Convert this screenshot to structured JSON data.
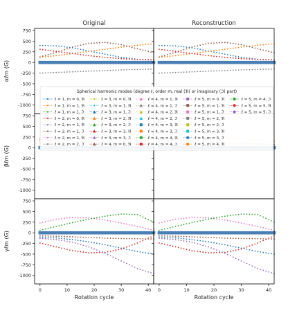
{
  "chart_data": {
    "type": "scatter",
    "column_titles": [
      "Original",
      "Reconstruction"
    ],
    "xlabel": "Rotation cycle",
    "xlim": [
      -2,
      42
    ],
    "xticks": [
      0,
      10,
      20,
      30,
      40
    ],
    "ylim": [
      -1200,
      800
    ],
    "yticks": [
      750,
      500,
      250,
      0,
      -250,
      -500,
      -750,
      -1000
    ],
    "rows": [
      {
        "ylabel": "αℓm (G)"
      },
      {
        "ylabel": "βℓm (G)"
      },
      {
        "ylabel": "γℓm (G)"
      }
    ],
    "legend": {
      "title": "Spherical harmonic modes (degree ℓ, order m, real (ℜ) or imaginary (ℑ) part)",
      "placement": "center (spanning top-row panels)",
      "entries": [
        {
          "label": "ℓ = 1, m = 0, ℜ",
          "color": "#1f77b4",
          "marker": "point"
        },
        {
          "label": "ℓ = 1, m = 1, ℜ",
          "color": "#ff7f0e",
          "marker": "point"
        },
        {
          "label": "ℓ = 1, m = 1, ℑ",
          "color": "#2ca02c",
          "marker": "point"
        },
        {
          "label": "ℓ = 2, m = 0, ℜ",
          "color": "#d62728",
          "marker": "point"
        },
        {
          "label": "ℓ = 2, m = 1, ℜ",
          "color": "#9467bd",
          "marker": "point"
        },
        {
          "label": "ℓ = 2, m = 1, ℑ",
          "color": "#8c564b",
          "marker": "point"
        },
        {
          "label": "ℓ = 2, m = 2, ℜ",
          "color": "#e377c2",
          "marker": "point"
        },
        {
          "label": "ℓ = 2, m = 2, ℑ",
          "color": "#7f7f7f",
          "marker": "point"
        },
        {
          "label": "ℓ = 3, m = 0, ℜ",
          "color": "#bcbd22",
          "marker": "point"
        },
        {
          "label": "ℓ = 3, m = 1, ℜ",
          "color": "#17becf",
          "marker": "point"
        },
        {
          "label": "ℓ = 3, m = 1, ℑ",
          "color": "#1f77b4",
          "marker": "triangle"
        },
        {
          "label": "ℓ = 3, m = 2, ℜ",
          "color": "#ff7f0e",
          "marker": "triangle"
        },
        {
          "label": "ℓ = 3, m = 2, ℑ",
          "color": "#2ca02c",
          "marker": "triangle"
        },
        {
          "label": "ℓ = 3, m = 3, ℜ",
          "color": "#d62728",
          "marker": "triangle"
        },
        {
          "label": "ℓ = 3, m = 3, ℑ",
          "color": "#9467bd",
          "marker": "triangle"
        },
        {
          "label": "ℓ = 4, m = 0, ℜ",
          "color": "#8c564b",
          "marker": "triangle"
        },
        {
          "label": "ℓ = 4, m = 1, ℜ",
          "color": "#e377c2",
          "marker": "triangle"
        },
        {
          "label": "ℓ = 4, m = 1, ℑ",
          "color": "#7f7f7f",
          "marker": "triangle"
        },
        {
          "label": "ℓ = 4, m = 2, ℜ",
          "color": "#bcbd22",
          "marker": "triangle"
        },
        {
          "label": "ℓ = 4, m = 2, ℑ",
          "color": "#17becf",
          "marker": "triangle"
        },
        {
          "label": "ℓ = 4, m = 3, ℜ",
          "color": "#1f77b4",
          "marker": "square"
        },
        {
          "label": "ℓ = 4, m = 3, ℑ",
          "color": "#ff7f0e",
          "marker": "square"
        },
        {
          "label": "ℓ = 4, m = 4, ℜ",
          "color": "#2ca02c",
          "marker": "square"
        },
        {
          "label": "ℓ = 4, m = 4, ℑ",
          "color": "#d62728",
          "marker": "square"
        },
        {
          "label": "ℓ = 5, m = 0, ℜ",
          "color": "#9467bd",
          "marker": "square"
        },
        {
          "label": "ℓ = 5, m = 1, ℜ",
          "color": "#8c564b",
          "marker": "square"
        },
        {
          "label": "ℓ = 5, m = 1, ℑ",
          "color": "#e377c2",
          "marker": "square"
        },
        {
          "label": "ℓ = 5, m = 2, ℜ",
          "color": "#7f7f7f",
          "marker": "square"
        },
        {
          "label": "ℓ = 5, m = 2, ℑ",
          "color": "#bcbd22",
          "marker": "square"
        },
        {
          "label": "ℓ = 5, m = 3, ℜ",
          "color": "#17becf",
          "marker": "square"
        },
        {
          "label": "ℓ = 5, m = 3, ℑ",
          "color": "#1f77b4",
          "marker": "circle"
        },
        {
          "label": "ℓ = 5, m = 4, ℜ",
          "color": "#ff7f0e",
          "marker": "circle"
        },
        {
          "label": "ℓ = 5, m = 4, ℑ",
          "color": "#2ca02c",
          "marker": "circle"
        },
        {
          "label": "ℓ = 5, m = 5, ℜ",
          "color": "#d62728",
          "marker": "circle"
        },
        {
          "label": "ℓ = 5, m = 5, ℑ",
          "color": "#9467bd",
          "marker": "circle"
        }
      ]
    },
    "series": [
      {
        "row": 0,
        "color": "#1f77b4",
        "x": [
          0,
          6,
          12,
          18,
          24,
          30,
          36,
          42
        ],
        "y": [
          400,
          390,
          345,
          270,
          195,
          120,
          75,
          60
        ]
      },
      {
        "row": 0,
        "color": "#ff7f0e",
        "x": [
          0,
          6,
          12,
          18,
          24,
          30,
          36,
          42
        ],
        "y": [
          120,
          160,
          210,
          260,
          310,
          360,
          405,
          440
        ]
      },
      {
        "row": 0,
        "color": "#8c564b",
        "x": [
          0,
          6,
          12,
          18,
          24,
          30,
          36,
          42
        ],
        "y": [
          130,
          240,
          360,
          450,
          470,
          420,
          320,
          230
        ]
      },
      {
        "row": 0,
        "color": "#d62728",
        "x": [
          0,
          6,
          12,
          18,
          24,
          30,
          36,
          42
        ],
        "y": [
          310,
          260,
          210,
          160,
          120,
          90,
          70,
          60
        ]
      },
      {
        "row": 0,
        "color": "#7f7f7f",
        "x": [
          0,
          6,
          12,
          18,
          24,
          30,
          36,
          42
        ],
        "y": [
          -250,
          -235,
          -220,
          -205,
          -190,
          -175,
          -165,
          -155
        ]
      },
      {
        "row": 0,
        "color": "#4a7fb5",
        "x": [
          0,
          42
        ],
        "y": [
          0,
          0
        ]
      },
      {
        "row": 1,
        "color": "#ff7f0e",
        "x": [
          0,
          6,
          12,
          18,
          24,
          30,
          36,
          42
        ],
        "y": [
          150,
          190,
          225,
          245,
          245,
          225,
          185,
          150
        ]
      },
      {
        "row": 1,
        "color": "#8c564b",
        "x": [
          0,
          6,
          12,
          18,
          24,
          30,
          36,
          42
        ],
        "y": [
          200,
          175,
          150,
          130,
          115,
          100,
          85,
          75
        ]
      },
      {
        "row": 1,
        "color": "#4a7fb5",
        "x": [
          0,
          42
        ],
        "y": [
          0,
          0
        ]
      },
      {
        "row": 2,
        "color": "#e377c2",
        "x": [
          0,
          6,
          12,
          18,
          24,
          30,
          36,
          42
        ],
        "y": [
          230,
          320,
          360,
          350,
          300,
          230,
          150,
          60
        ]
      },
      {
        "row": 2,
        "color": "#2ca02c",
        "x": [
          0,
          6,
          12,
          18,
          24,
          30,
          36,
          42
        ],
        "y": [
          60,
          150,
          240,
          320,
          390,
          440,
          430,
          250
        ]
      },
      {
        "row": 2,
        "color": "#1f77b4",
        "x": [
          0,
          6,
          12,
          18,
          24,
          30,
          36,
          42
        ],
        "y": [
          -100,
          -120,
          -160,
          -210,
          -280,
          -360,
          -440,
          -500
        ]
      },
      {
        "row": 2,
        "color": "#d62728",
        "x": [
          0,
          6,
          12,
          18,
          24,
          30,
          36,
          42
        ],
        "y": [
          -240,
          -330,
          -420,
          -470,
          -460,
          -380,
          -240,
          -70
        ]
      },
      {
        "row": 2,
        "color": "#9467bd",
        "x": [
          0,
          6,
          12,
          18,
          24,
          30,
          36,
          42
        ],
        "y": [
          -130,
          -160,
          -220,
          -330,
          -480,
          -660,
          -840,
          -960
        ]
      },
      {
        "row": 2,
        "color": "#8c564b",
        "x": [
          0,
          6,
          12,
          18,
          24,
          30,
          36,
          42
        ],
        "y": [
          -70,
          -80,
          -95,
          -110,
          -125,
          -135,
          -140,
          -145
        ]
      },
      {
        "row": 2,
        "color": "#4a7fb5",
        "x": [
          0,
          42
        ],
        "y": [
          0,
          0
        ]
      }
    ]
  }
}
